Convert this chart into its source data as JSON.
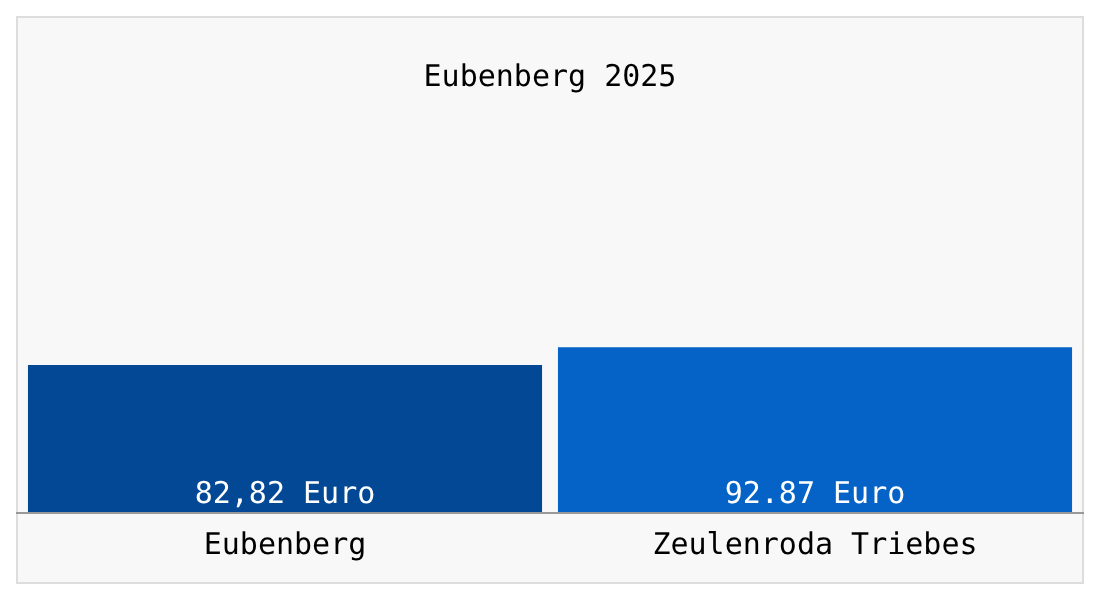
{
  "chart_data": {
    "type": "bar",
    "title": "Eubenberg 2025",
    "categories": [
      "Eubenberg",
      "Zeulenroda Triebes"
    ],
    "values": [
      82.82,
      92.87
    ],
    "colors": [
      "#034894",
      "#0562c6"
    ],
    "value_labels": [
      "82,82 Euro",
      "92.87 Euro"
    ],
    "grid": false,
    "legend": false
  }
}
